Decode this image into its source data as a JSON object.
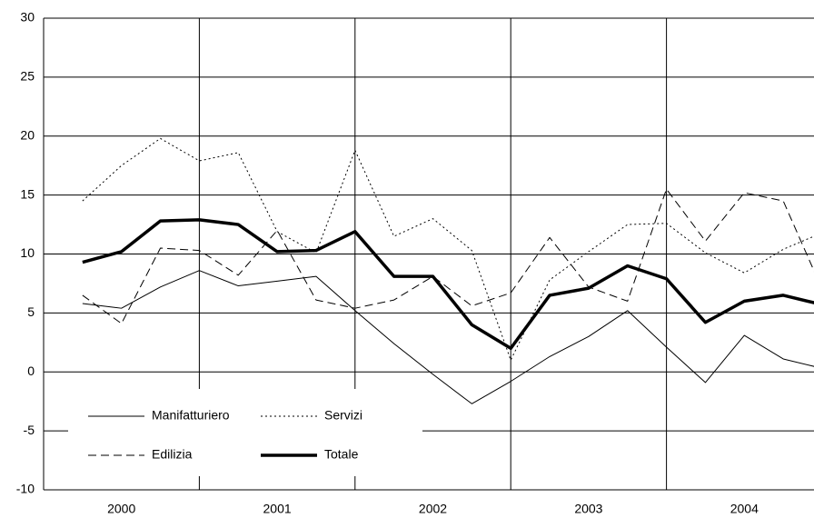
{
  "chart_data": {
    "type": "line",
    "categories": [
      null,
      "2000",
      null,
      null,
      null,
      "2001",
      null,
      null,
      null,
      "2002",
      null,
      null,
      null,
      "2003",
      null,
      null,
      null,
      "2004",
      null,
      null
    ],
    "category_dividers": [
      3,
      7,
      11,
      15
    ],
    "series": [
      {
        "name": "Manifatturiero",
        "color": "#000000",
        "line_style": "solid",
        "line_width": 1,
        "values": [
          5.8,
          5.4,
          7.2,
          8.6,
          7.3,
          7.7,
          8.1,
          5.2,
          2.4,
          -0.2,
          -2.7,
          -0.8,
          1.3,
          3.0,
          5.2,
          2.1,
          -0.9,
          3.1,
          1.1,
          0.3
        ]
      },
      {
        "name": "Servizi",
        "color": "#000000",
        "line_style": "dotted",
        "line_width": 1,
        "values": [
          14.5,
          17.5,
          19.8,
          17.9,
          18.6,
          11.9,
          10.1,
          18.8,
          11.5,
          13.0,
          10.3,
          1.0,
          7.8,
          10.2,
          12.5,
          12.6,
          10.1,
          8.4,
          10.4,
          11.8
        ]
      },
      {
        "name": "Edilizia",
        "color": "#000000",
        "line_style": "dashed",
        "line_width": 1,
        "values": [
          6.5,
          4.1,
          10.5,
          10.3,
          8.2,
          12.0,
          6.1,
          5.4,
          6.1,
          8.1,
          5.6,
          6.7,
          11.4,
          7.2,
          6.0,
          15.5,
          11.1,
          15.2,
          14.5,
          7.0
        ]
      },
      {
        "name": "Totale",
        "color": "#000000",
        "line_style": "solid",
        "line_width": 3.5,
        "values": [
          9.3,
          10.2,
          12.8,
          12.9,
          12.5,
          10.2,
          10.3,
          11.9,
          8.1,
          8.1,
          4.0,
          2.0,
          6.5,
          7.1,
          9.0,
          7.9,
          4.2,
          6.0,
          6.5,
          5.7
        ]
      }
    ],
    "ylim": [
      -10,
      30
    ],
    "yticks": [
      -10,
      -5,
      0,
      5,
      10,
      15,
      20,
      25,
      30
    ],
    "grid": true,
    "legend": "bottom-left"
  }
}
